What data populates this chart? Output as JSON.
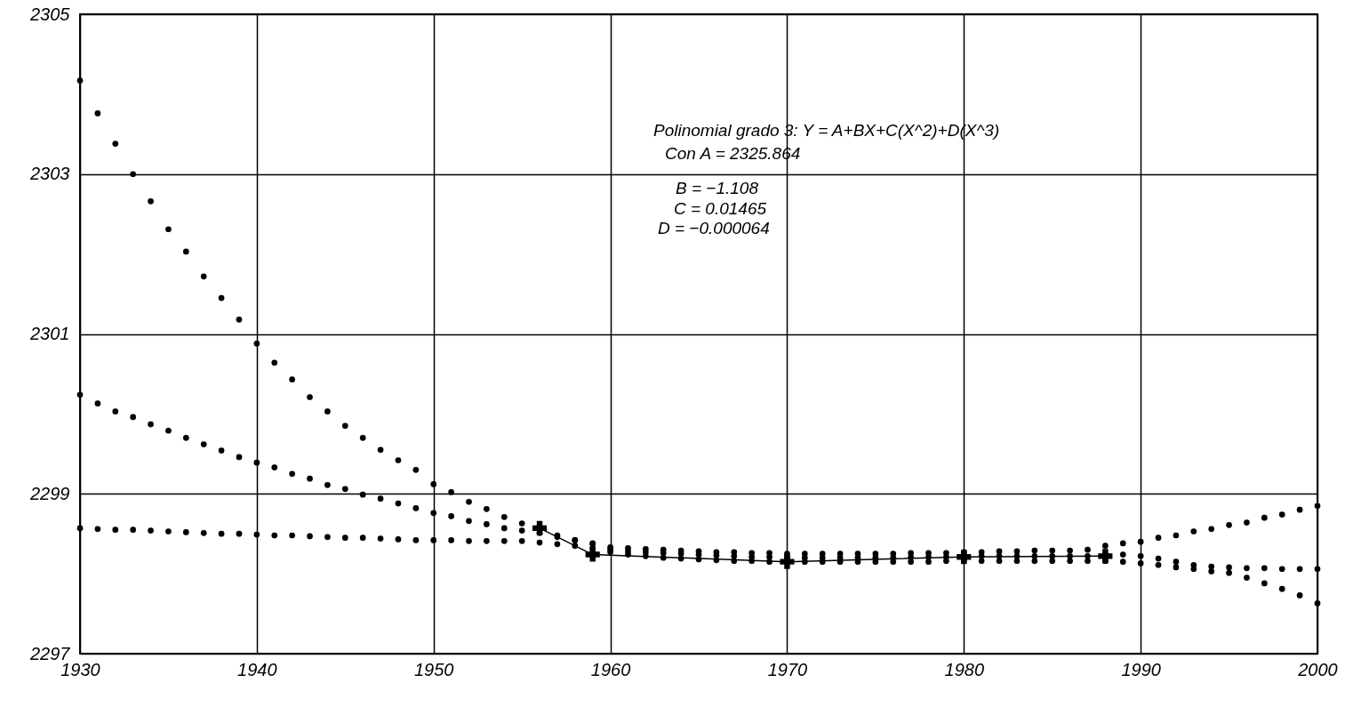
{
  "chart_data": {
    "type": "scatter",
    "annotations": [
      "Polinomial grado 3: Y = A+BX+C(X^2)+D(X^3)",
      "Con A = 2325.864",
      "B = −1.108",
      "C = 0.01465",
      "D = −0.000064"
    ],
    "x": [
      1930,
      1931,
      1932,
      1933,
      1934,
      1935,
      1936,
      1937,
      1938,
      1939,
      1940,
      1941,
      1942,
      1943,
      1944,
      1945,
      1946,
      1947,
      1948,
      1949,
      1950,
      1951,
      1952,
      1953,
      1954,
      1955,
      1956,
      1957,
      1958,
      1959,
      1960,
      1961,
      1962,
      1963,
      1964,
      1965,
      1966,
      1967,
      1968,
      1969,
      1970,
      1971,
      1972,
      1973,
      1974,
      1975,
      1976,
      1977,
      1978,
      1979,
      1980,
      1981,
      1982,
      1983,
      1984,
      1985,
      1986,
      1987,
      1988,
      1989,
      1990,
      1991,
      1992,
      1993,
      1994,
      1995,
      1996,
      1997,
      1998,
      1999,
      2000
    ],
    "series": [
      {
        "type": "scatter",
        "color": "#000000",
        "values": [
          2304.17,
          2303.76,
          2303.38,
          2303.0,
          2302.66,
          2302.31,
          2302.03,
          2301.72,
          2301.45,
          2301.18,
          2300.88,
          2300.64,
          2300.43,
          2300.21,
          2300.03,
          2299.85,
          2299.7,
          2299.55,
          2299.42,
          2299.3,
          2299.12,
          2299.02,
          2298.9,
          2298.81,
          2298.71,
          2298.63,
          2298.56,
          2298.48,
          2298.42,
          2298.38,
          2298.33,
          2298.32,
          2298.31,
          2298.3,
          2298.29,
          2298.28,
          2298.27,
          2298.27,
          2298.26,
          2298.26,
          2298.25,
          2298.25,
          2298.25,
          2298.25,
          2298.25,
          2298.25,
          2298.25,
          2298.26,
          2298.26,
          2298.26,
          2298.27,
          2298.27,
          2298.28,
          2298.28,
          2298.29,
          2298.29,
          2298.29,
          2298.3,
          2298.35,
          2298.38,
          2298.4,
          2298.45,
          2298.48,
          2298.53,
          2298.56,
          2298.61,
          2298.64,
          2298.7,
          2298.74,
          2298.8,
          2298.85
        ]
      },
      {
        "type": "scatter",
        "color": "#000000",
        "values": [
          2300.24,
          2300.13,
          2300.03,
          2299.96,
          2299.87,
          2299.79,
          2299.7,
          2299.62,
          2299.54,
          2299.46,
          2299.39,
          2299.33,
          2299.25,
          2299.19,
          2299.11,
          2299.06,
          2298.99,
          2298.94,
          2298.88,
          2298.82,
          2298.76,
          2298.72,
          2298.66,
          2298.62,
          2298.57,
          2298.54,
          2298.51,
          2298.46,
          2298.42,
          2298.37,
          2298.3,
          2298.28,
          2298.27,
          2298.26,
          2298.25,
          2298.24,
          2298.23,
          2298.22,
          2298.21,
          2298.21,
          2298.2,
          2298.2,
          2298.2,
          2298.2,
          2298.2,
          2298.2,
          2298.2,
          2298.21,
          2298.21,
          2298.21,
          2298.22,
          2298.22,
          2298.22,
          2298.22,
          2298.22,
          2298.22,
          2298.22,
          2298.22,
          2298.24,
          2298.24,
          2298.22,
          2298.19,
          2298.15,
          2298.11,
          2298.09,
          2298.08,
          2298.07,
          2298.07,
          2298.06,
          2298.06,
          2298.06
        ]
      },
      {
        "type": "scatter",
        "color": "#000000",
        "values": [
          2298.57,
          2298.56,
          2298.55,
          2298.55,
          2298.54,
          2298.53,
          2298.52,
          2298.51,
          2298.5,
          2298.5,
          2298.49,
          2298.48,
          2298.48,
          2298.47,
          2298.46,
          2298.45,
          2298.45,
          2298.44,
          2298.43,
          2298.42,
          2298.42,
          2298.42,
          2298.41,
          2298.41,
          2298.41,
          2298.41,
          2298.39,
          2298.37,
          2298.35,
          2298.32,
          2298.27,
          2298.24,
          2298.22,
          2298.2,
          2298.19,
          2298.18,
          2298.17,
          2298.16,
          2298.16,
          2298.15,
          2298.15,
          2298.15,
          2298.15,
          2298.15,
          2298.15,
          2298.15,
          2298.15,
          2298.15,
          2298.15,
          2298.16,
          2298.16,
          2298.16,
          2298.16,
          2298.16,
          2298.16,
          2298.16,
          2298.16,
          2298.16,
          2298.16,
          2298.15,
          2298.13,
          2298.11,
          2298.08,
          2298.06,
          2298.03,
          2298.01,
          2297.95,
          2297.88,
          2297.81,
          2297.73,
          2297.63
        ]
      },
      {
        "type": "line",
        "color": "#000000",
        "marker": "cross",
        "line_style": "solid",
        "x": [
          1956,
          1959,
          1970,
          1980,
          1988
        ],
        "values": [
          2298.57,
          2298.24,
          2298.15,
          2298.21,
          2298.22
        ]
      }
    ],
    "xlim": [
      1930,
      2000
    ],
    "xticks": [
      1930,
      1940,
      1950,
      1960,
      1970,
      1980,
      1990,
      2000
    ],
    "ylim": [
      2297,
      2305
    ],
    "yticks": [
      2297,
      2299,
      2301,
      2303,
      2305
    ],
    "grid": true,
    "marker": "circle"
  }
}
